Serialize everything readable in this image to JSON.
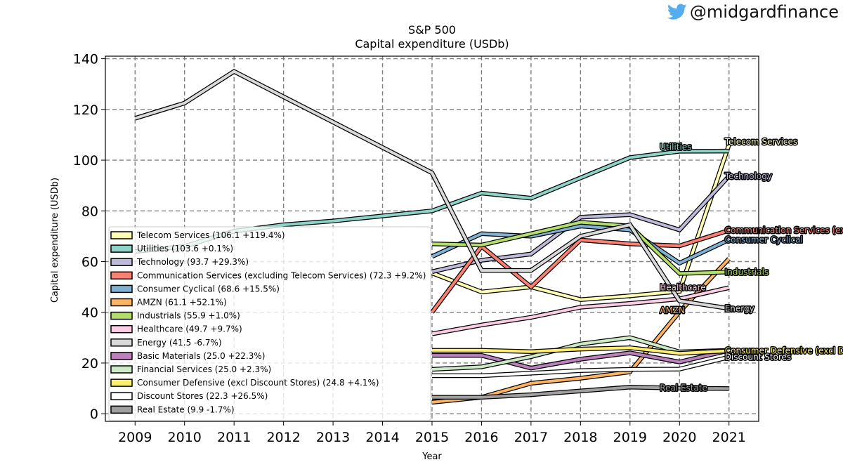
{
  "brand": {
    "handle": "@midgardfinance",
    "icon": "twitter-bird-icon",
    "icon_color": "#55ACEE"
  },
  "chart_data": {
    "type": "line",
    "title": "S&P 500",
    "subtitle": "Capital expenditure (USDb)",
    "xlabel": "Year",
    "ylabel": "Capital expenditure (USDb)",
    "x": [
      2009,
      2010,
      2011,
      2012,
      2013,
      2014,
      2015,
      2016,
      2017,
      2018,
      2019,
      2020,
      2021
    ],
    "xlim": [
      2008.4,
      2021.6
    ],
    "ylim": [
      -3,
      141
    ],
    "yticks": [
      0,
      20,
      40,
      60,
      80,
      100,
      120,
      140
    ],
    "grid": true,
    "legend_position": "lower-left",
    "series": [
      {
        "name": "Telecom Services",
        "legend": "Telecom Services (106.1 +119.4%)",
        "end_label": "Telecom Services",
        "color": "#FFFFB3",
        "values": [
          null,
          null,
          null,
          null,
          null,
          null,
          55.5,
          48,
          50,
          45,
          46.5,
          48.3,
          106.1
        ]
      },
      {
        "name": "Utilities",
        "legend": "Utilities (103.6 +0.1%)",
        "end_label": "Utilities",
        "color": "#8DD3C7",
        "values": [
          64,
          66,
          72,
          74.5,
          76,
          78,
          80,
          87,
          85,
          93,
          101,
          103.5,
          103.6
        ]
      },
      {
        "name": "Technology",
        "legend": "Technology (93.7 +29.3%)",
        "end_label": "Technology",
        "color": "#BEBADA",
        "values": [
          null,
          null,
          null,
          null,
          null,
          null,
          56,
          60.5,
          63,
          77.5,
          78.5,
          72.5,
          93.7
        ]
      },
      {
        "name": "Communication Services (excluding Telecom Services)",
        "legend": "Communication Services (excluding Telecom Services) (72.3 +9.2%)",
        "end_label": "Communication Services (excluding Telecom Services)",
        "color": "#FB8072",
        "values": [
          null,
          null,
          null,
          null,
          null,
          null,
          40,
          66,
          50,
          68.5,
          67,
          66.2,
          72.3
        ]
      },
      {
        "name": "Consumer Cyclical",
        "legend": "Consumer Cyclical (68.6 +15.5%)",
        "end_label": "Consumer Cyclical",
        "color": "#80B1D3",
        "values": [
          null,
          null,
          null,
          null,
          null,
          null,
          62,
          71,
          70,
          74,
          72.5,
          59.4,
          68.6
        ]
      },
      {
        "name": "AMZN",
        "legend": "AMZN (61.1 +52.1%)",
        "end_label": "AMZN",
        "color": "#FDB462",
        "values": [
          null,
          null,
          null,
          null,
          null,
          null,
          4.5,
          6.5,
          12,
          14,
          16.5,
          40.2,
          61.1
        ]
      },
      {
        "name": "Industrials",
        "legend": "Industrials (55.9 +1.0%)",
        "end_label": "Industrials",
        "color": "#B3DE69",
        "values": [
          null,
          null,
          null,
          null,
          null,
          null,
          67,
          66.5,
          71,
          75.5,
          74,
          55.3,
          55.9
        ]
      },
      {
        "name": "Healthcare",
        "legend": "Healthcare (49.7 +9.7%)",
        "end_label": "Healthcare",
        "color": "#FCCDE5",
        "values": [
          null,
          null,
          null,
          null,
          null,
          null,
          31.5,
          35,
          38,
          42,
          43.5,
          45.3,
          49.7
        ]
      },
      {
        "name": "Energy",
        "legend": "Energy (41.5 -6.7%)",
        "end_label": "Energy",
        "color": "#D9D9D9",
        "values": [
          116.5,
          122.5,
          135,
          125,
          115,
          105,
          95,
          56.5,
          56.5,
          70,
          74.5,
          44.5,
          41.5
        ]
      },
      {
        "name": "Basic Materials",
        "legend": "Basic Materials (25.0 +22.3%)",
        "end_label": "",
        "color": "#BC80BD",
        "values": [
          null,
          null,
          null,
          null,
          null,
          null,
          23,
          23,
          18,
          21.5,
          24,
          20.4,
          25.0
        ]
      },
      {
        "name": "Financial Services",
        "legend": "Financial Services (25.0 +2.3%)",
        "end_label": "",
        "color": "#CCEBC5",
        "values": [
          null,
          null,
          null,
          null,
          null,
          null,
          17.5,
          18.5,
          22.5,
          27.5,
          30,
          24.4,
          25.0
        ]
      },
      {
        "name": "Consumer Defensive (excl Discount Stores)",
        "legend": "Consumer Defensive (excl Discount Stores) (24.8 +4.1%)",
        "end_label": "Consumer Defensive (excl Discount Stores)",
        "color": "#FFED6F",
        "values": [
          null,
          null,
          null,
          null,
          null,
          null,
          25,
          25,
          24.5,
          25.5,
          26,
          23.8,
          24.8
        ]
      },
      {
        "name": "Discount Stores",
        "legend": "Discount Stores (22.3 +26.5%)",
        "end_label": "Discount Stores",
        "color": "#FFFFFF",
        "values": [
          null,
          null,
          null,
          null,
          null,
          null,
          15,
          15,
          16,
          17,
          17.5,
          17.6,
          22.3
        ]
      },
      {
        "name": "Real Estate",
        "legend": "Real Estate (9.9 -1.7%)",
        "end_label": "Real Estate",
        "color": "#A0A0A0",
        "values": [
          null,
          null,
          null,
          null,
          null,
          null,
          6.5,
          6.5,
          7.5,
          9,
          10.5,
          10.1,
          9.9
        ]
      }
    ]
  }
}
